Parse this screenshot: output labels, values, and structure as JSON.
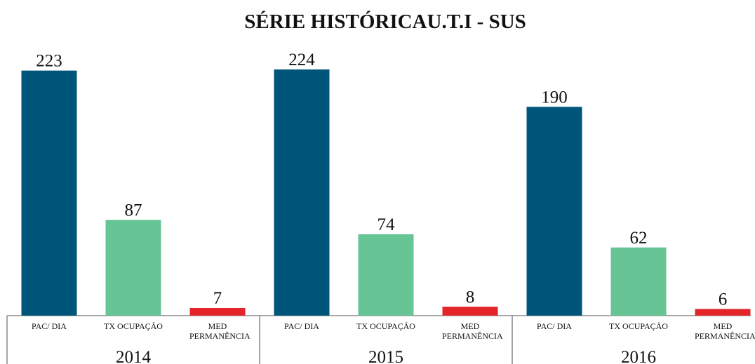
{
  "chart_data": {
    "type": "grouped_bar",
    "title": "SÉRIE HISTÓRICAU.T.I - SUS",
    "groups": [
      "2014",
      "2015",
      "2016"
    ],
    "categories": [
      "PAC/ DIA",
      "TX OCUPAÇÃO",
      "MED PERMANÊNCIA"
    ],
    "colors": [
      "#00567a",
      "#66c495",
      "#e32428"
    ],
    "values": [
      [
        223,
        87,
        7
      ],
      [
        224,
        74,
        8
      ],
      [
        190,
        62,
        6
      ]
    ],
    "ylim": [
      0,
      240
    ]
  }
}
